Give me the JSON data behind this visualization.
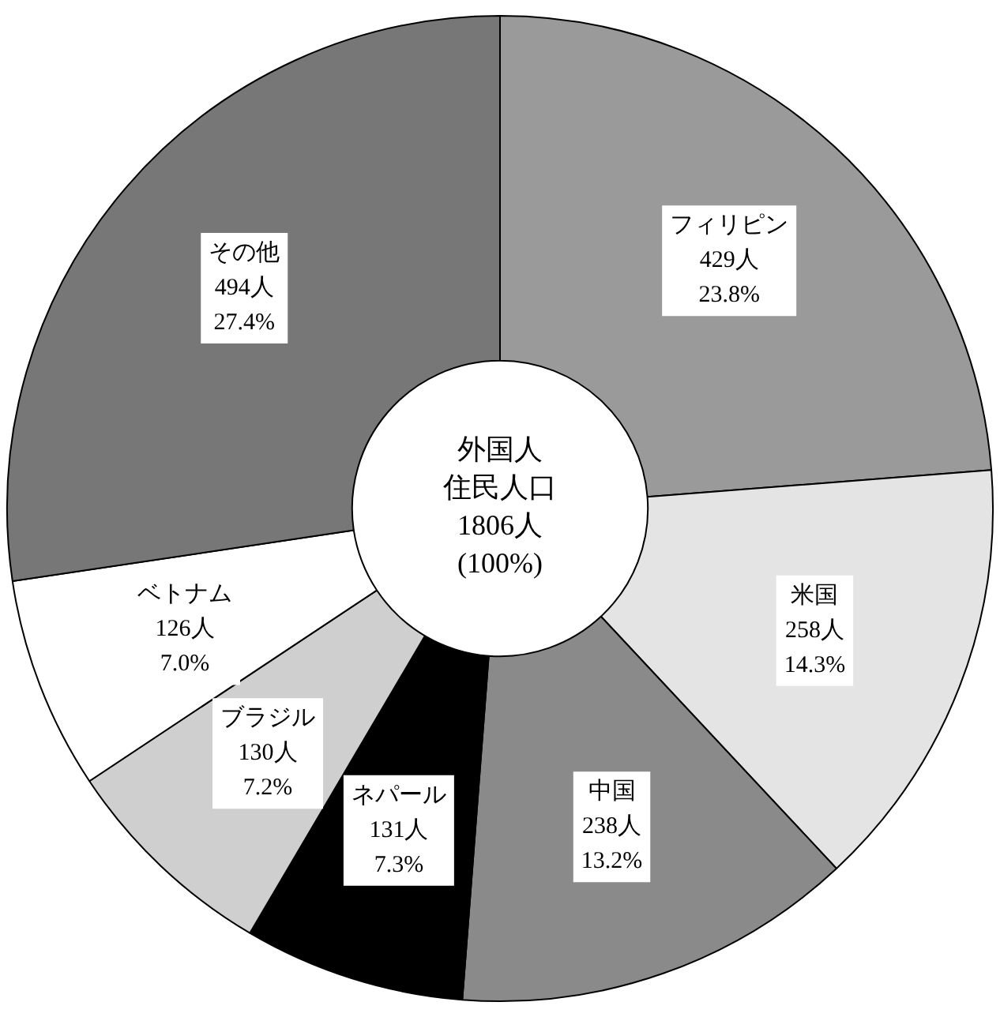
{
  "chart_data": {
    "type": "donut",
    "categories": [
      "フィリピン",
      "米国",
      "中国",
      "ネパール",
      "ブラジル",
      "ベトナム",
      "その他"
    ],
    "values": [
      429,
      258,
      238,
      131,
      130,
      126,
      494
    ],
    "value_labels": [
      "429人\n23.8%",
      "258人\n14.3%",
      "238人\n13.2%",
      "131人\n7.3%",
      "130人\n7.2%",
      "126人\n7.0%",
      "494人\n27.4%"
    ],
    "colors": [
      "#9a9a9a",
      "#e4e4e4",
      "#8a8a8a",
      "#000000",
      "#cfcfcf",
      "#ffffff",
      "#777777"
    ],
    "annotations": [
      "外国人",
      "住民人口",
      "1806人",
      "(100%)"
    ],
    "legend": false
  }
}
